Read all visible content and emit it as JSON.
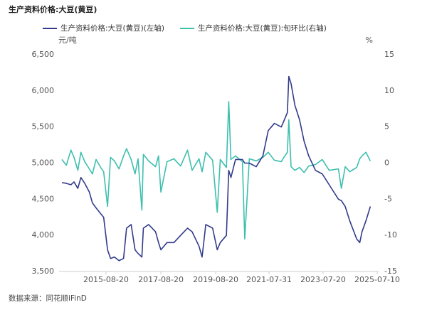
{
  "chart_data": {
    "type": "line",
    "title": "生产资料价格:大豆(黄豆)",
    "y_unit": "元/吨",
    "y2_unit": "%",
    "source": "数据来源：同花顺iFinD",
    "x": [
      "2014-01-10",
      "2014-03-10",
      "2014-05-10",
      "2014-06-20",
      "2014-08-10",
      "2014-09-20",
      "2014-11-10",
      "2015-01-10",
      "2015-02-20",
      "2015-04-10",
      "2015-06-10",
      "2015-07-20",
      "2015-09-10",
      "2015-10-20",
      "2015-12-10",
      "2016-02-10",
      "2016-04-10",
      "2016-05-20",
      "2016-07-20",
      "2016-09-10",
      "2016-10-20",
      "2016-12-10",
      "2016-12-30",
      "2017-03-10",
      "2017-06-10",
      "2017-07-20",
      "2017-08-20",
      "2017-11-10",
      "2018-02-10",
      "2018-05-10",
      "2018-08-10",
      "2018-10-10",
      "2019-01-10",
      "2019-02-20",
      "2019-04-10",
      "2019-07-10",
      "2019-09-10",
      "2019-10-20",
      "2020-01-10",
      "2020-02-10",
      "2020-03-10",
      "2020-05-10",
      "2020-08-10",
      "2020-09-10",
      "2020-11-10",
      "2021-02-10",
      "2021-05-10",
      "2021-07-20",
      "2021-10-10",
      "2022-01-10",
      "2022-02-20",
      "2022-04-01",
      "2022-04-20",
      "2022-05-20",
      "2022-07-10",
      "2022-09-10",
      "2022-11-10",
      "2023-01-10",
      "2023-04-10",
      "2023-07-10",
      "2023-10-10",
      "2024-02-10",
      "2024-03-20",
      "2024-05-10",
      "2024-07-10",
      "2024-10-10",
      "2024-11-20",
      "2024-12-20",
      "2025-02-10",
      "2025-04-10"
    ],
    "series": [
      {
        "name": "生产资料价格:大豆(黄豆)(左轴)",
        "color": "#323b8a",
        "values": [
          4730,
          4720,
          4700,
          4740,
          4650,
          4800,
          4720,
          4600,
          4450,
          4380,
          4300,
          4250,
          3800,
          3680,
          3700,
          3650,
          3680,
          4100,
          4150,
          3800,
          3750,
          3700,
          4100,
          4150,
          4050,
          3900,
          3800,
          3900,
          3900,
          4000,
          4100,
          4050,
          3850,
          3700,
          4150,
          4100,
          3800,
          3900,
          4000,
          4900,
          4800,
          5050,
          5050,
          5000,
          5000,
          4950,
          5100,
          5450,
          5550,
          5500,
          5600,
          5700,
          6200,
          6100,
          5800,
          5600,
          5300,
          5100,
          4900,
          4850,
          4700,
          4500,
          4480,
          4400,
          4200,
          3950,
          3900,
          4050,
          4200,
          4400
        ]
      },
      {
        "name": "生产资料价格:大豆(黄豆):旬环比(右轴)",
        "color": "#3dbfae",
        "axis": "y2",
        "values": [
          0.5,
          -0.3,
          1.8,
          0.8,
          -1.0,
          1.5,
          0.2,
          -0.8,
          -1.5,
          0.5,
          -0.6,
          -1.2,
          -6.0,
          0.8,
          0.3,
          -0.8,
          1.0,
          2.0,
          0.5,
          -1.5,
          0.6,
          -6.5,
          1.2,
          0.3,
          -0.5,
          1.0,
          -4.0,
          0.2,
          0.6,
          -0.4,
          1.8,
          -1.0,
          0.6,
          -1.2,
          1.5,
          0.4,
          -6.8,
          0.5,
          -0.6,
          8.5,
          0.5,
          1.0,
          0.2,
          -10.5,
          0.6,
          0.3,
          0.8,
          1.5,
          0.4,
          0.2,
          0.9,
          1.5,
          6.0,
          -0.5,
          -1.0,
          -0.6,
          -1.3,
          -0.4,
          -0.2,
          0.5,
          -1.0,
          -0.8,
          -3.5,
          -0.5,
          -1.2,
          -0.6,
          0.6,
          1.0,
          1.5,
          0.3
        ]
      }
    ],
    "xlim": [
      "2014-01-10",
      "2025-07-10"
    ],
    "xticks": [
      "2015-08-20",
      "2017-08-20",
      "2019-08-20",
      "2021-07-31",
      "2023-07-20",
      "2025-07-10"
    ],
    "ylim": [
      3500,
      6500
    ],
    "yticks": [
      {
        "value": 3500,
        "label": "3,500"
      },
      {
        "value": 4000,
        "label": "4,000"
      },
      {
        "value": 4500,
        "label": "4,500"
      },
      {
        "value": 5000,
        "label": "5,000"
      },
      {
        "value": 5500,
        "label": "5,500"
      },
      {
        "value": 6000,
        "label": "6,000"
      },
      {
        "value": 6500,
        "label": "6,500"
      }
    ],
    "y2lim": [
      -15,
      15
    ],
    "y2ticks": [
      -15,
      -10,
      -5,
      0,
      5,
      10,
      15
    ]
  }
}
